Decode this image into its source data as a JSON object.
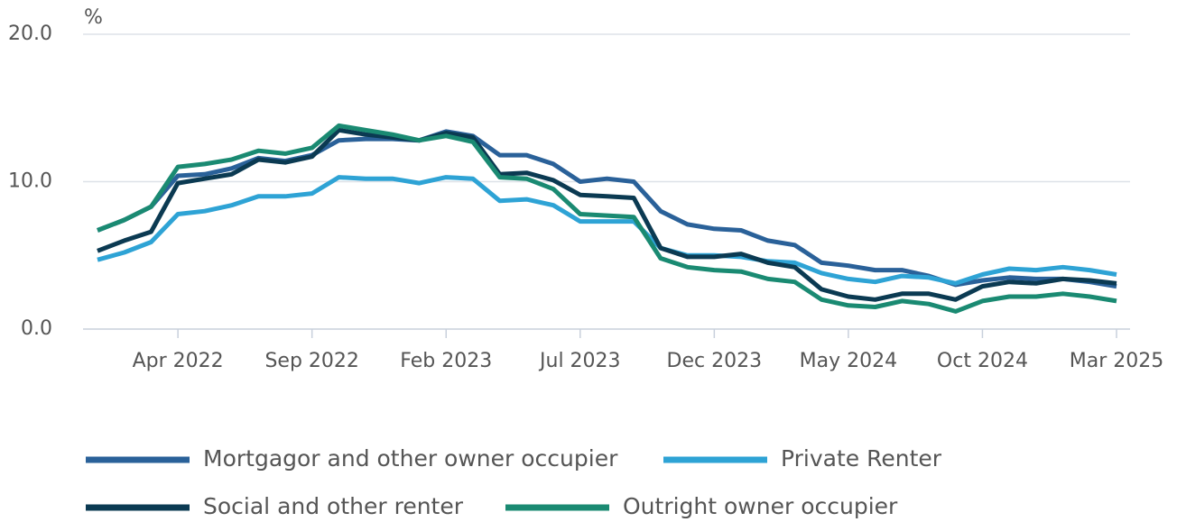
{
  "chart_data": {
    "type": "line",
    "y_axis_label": "%",
    "categories": [
      null,
      null,
      null,
      "Apr 2022",
      null,
      null,
      null,
      null,
      "Sep 2022",
      null,
      null,
      null,
      null,
      "Feb 2023",
      null,
      null,
      null,
      null,
      "Jul 2023",
      null,
      null,
      null,
      null,
      "Dec 2023",
      null,
      null,
      null,
      null,
      "May 2024",
      null,
      null,
      null,
      null,
      "Oct 2024",
      null,
      null,
      null,
      null,
      "Mar 2025"
    ],
    "series": [
      {
        "name": "Mortgagor and other owner occupier",
        "color": "#2a6199",
        "values": [
          6.7,
          7.4,
          8.3,
          10.4,
          10.5,
          10.9,
          11.6,
          11.4,
          11.8,
          12.8,
          12.9,
          12.9,
          12.8,
          13.4,
          13.1,
          11.8,
          11.8,
          11.2,
          10.0,
          10.2,
          10.0,
          8.0,
          7.1,
          6.8,
          6.7,
          6.0,
          5.7,
          4.5,
          4.3,
          4.0,
          4.0,
          3.6,
          3.0,
          3.3,
          3.5,
          3.4,
          3.4,
          3.2,
          2.9
        ]
      },
      {
        "name": "Private Renter",
        "color": "#2ea3d5",
        "values": [
          4.7,
          5.2,
          5.9,
          7.8,
          8.0,
          8.4,
          9.0,
          9.0,
          9.2,
          10.3,
          10.2,
          10.2,
          9.9,
          10.3,
          10.2,
          8.7,
          8.8,
          8.4,
          7.3,
          7.3,
          7.3,
          5.5,
          5.0,
          5.0,
          4.9,
          4.6,
          4.5,
          3.8,
          3.4,
          3.2,
          3.6,
          3.5,
          3.1,
          3.7,
          4.1,
          4.0,
          4.2,
          4.0,
          3.7
        ]
      },
      {
        "name": "Social and other renter",
        "color": "#0b3a52",
        "values": [
          5.3,
          6.0,
          6.6,
          9.9,
          10.2,
          10.5,
          11.5,
          11.3,
          11.7,
          13.5,
          13.2,
          13.0,
          12.8,
          13.3,
          13.0,
          10.5,
          10.6,
          10.1,
          9.1,
          9.0,
          8.9,
          5.5,
          4.9,
          4.9,
          5.1,
          4.5,
          4.2,
          2.7,
          2.2,
          2.0,
          2.4,
          2.4,
          2.0,
          2.9,
          3.2,
          3.1,
          3.4,
          3.3,
          3.1
        ]
      },
      {
        "name": "Outright owner occupier",
        "color": "#1a8a72",
        "values": [
          6.7,
          7.4,
          8.3,
          11.0,
          11.2,
          11.5,
          12.1,
          11.9,
          12.3,
          13.8,
          13.5,
          13.2,
          12.8,
          13.1,
          12.7,
          10.3,
          10.2,
          9.5,
          7.8,
          7.7,
          7.6,
          4.8,
          4.2,
          4.0,
          3.9,
          3.4,
          3.2,
          2.0,
          1.6,
          1.5,
          1.9,
          1.7,
          1.2,
          1.9,
          2.2,
          2.2,
          2.4,
          2.2,
          1.9
        ]
      }
    ],
    "ylim": [
      0,
      20
    ],
    "yticks": [
      {
        "value": 0,
        "label": "0.0"
      },
      {
        "value": 10,
        "label": "10.0"
      },
      {
        "value": 20,
        "label": "20.0"
      }
    ],
    "grid": true
  }
}
